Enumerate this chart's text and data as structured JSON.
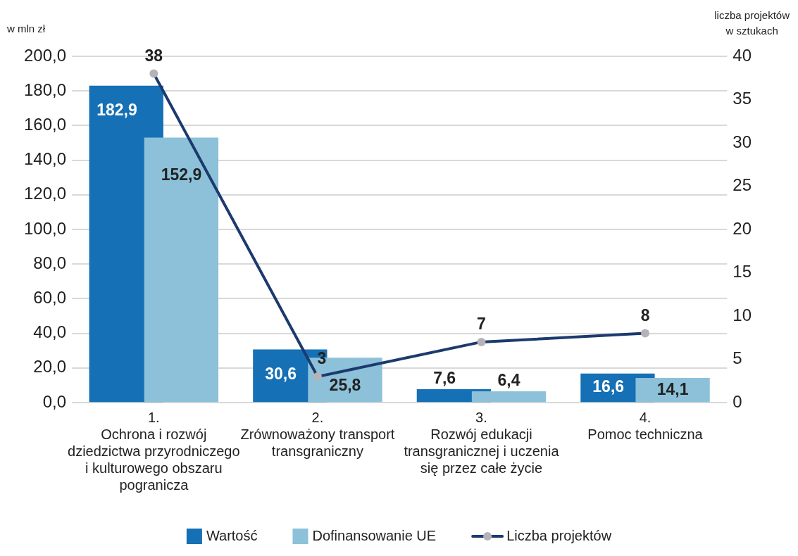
{
  "chart_data": {
    "type": "bar",
    "ylabel": "w mln zł",
    "y2label": "liczba projektów w sztukach",
    "categories": [
      "1. Ochrona i rozwój dziedzictwa przyrodniczego i kulturowego obszaru pogranicza",
      "2. Zrównoważony transport transgraniczny",
      "3. Rozwój edukacji transgranicznej i uczenia się przez całe życie",
      "4. Pomoc techniczna"
    ],
    "series": [
      {
        "name": "Wartość",
        "color": "#1570b5",
        "values": [
          182.9,
          30.6,
          7.6,
          16.6
        ],
        "value_labels": [
          "182,9",
          "30,6",
          "7,6",
          "16,6"
        ]
      },
      {
        "name": "Dofinansowanie UE",
        "color": "#8cc1d9",
        "values": [
          152.9,
          25.8,
          6.4,
          14.1
        ],
        "value_labels": [
          "152,9",
          "25,8",
          "6,4",
          "14,1"
        ]
      },
      {
        "name": "Liczba projektów",
        "type": "line",
        "axis": "y2",
        "color": "#1c3a6e",
        "values": [
          38,
          3,
          7,
          8
        ],
        "value_labels": [
          "38",
          "3",
          "7",
          "8"
        ]
      }
    ],
    "ylim": [
      0,
      200
    ],
    "yticks": [
      {
        "value": 0,
        "label": "0,0"
      },
      {
        "value": 20,
        "label": "20,0"
      },
      {
        "value": 40,
        "label": "40,0"
      },
      {
        "value": 60,
        "label": "60,0"
      },
      {
        "value": 80,
        "label": "80,0"
      },
      {
        "value": 100,
        "label": "100,0"
      },
      {
        "value": 120,
        "label": "120,0"
      },
      {
        "value": 140,
        "label": "140,0"
      },
      {
        "value": 160,
        "label": "160,0"
      },
      {
        "value": 180,
        "label": "180,0"
      },
      {
        "value": 200,
        "label": "200,0"
      }
    ],
    "y2lim": [
      0,
      40
    ],
    "y2ticks": [
      0,
      5,
      10,
      15,
      20,
      25,
      30,
      35,
      40
    ],
    "grid": "y",
    "legend": "bottom",
    "marker": "circle"
  }
}
